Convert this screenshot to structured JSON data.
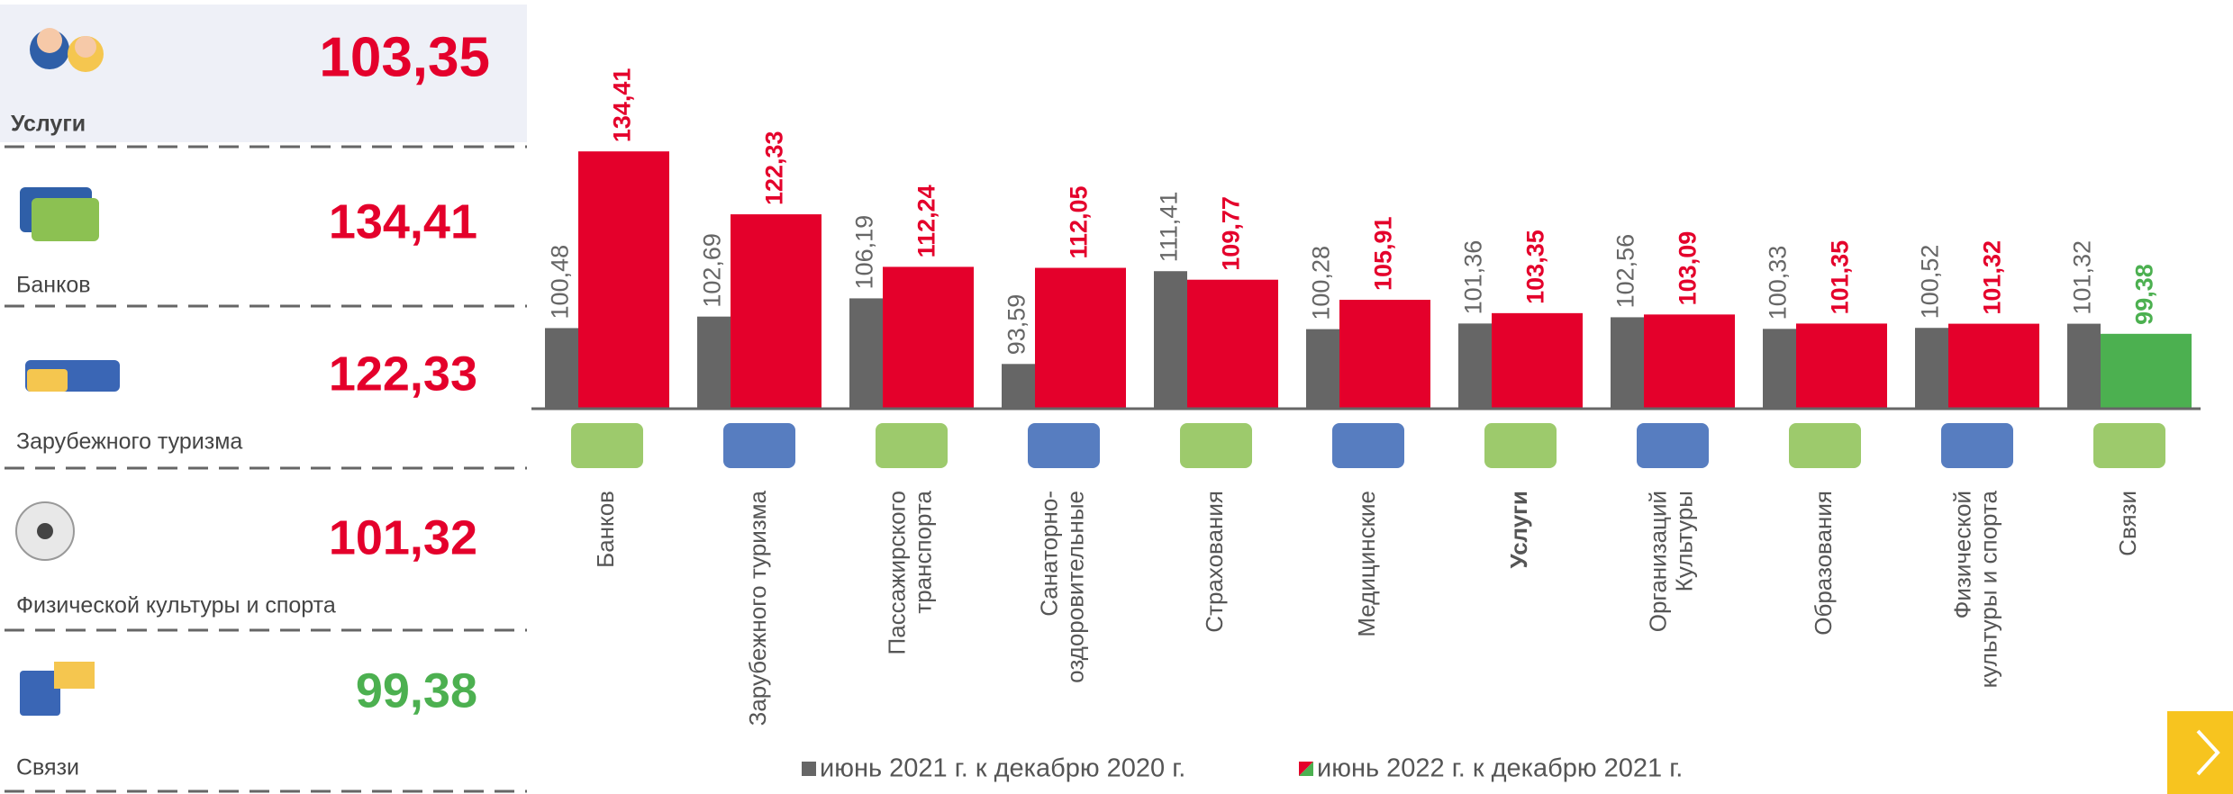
{
  "panel": {
    "labels": [
      "Услуги",
      "Банков",
      "Зарубежного туризма",
      "Физической культуры и спорта",
      "Связи"
    ],
    "values": [
      103.35,
      134.41,
      122.33,
      101.32,
      99.38
    ],
    "value_labels": [
      "103,35",
      "134,41",
      "122,33",
      "101,32",
      "99,38"
    ],
    "colors": [
      "#e4002b",
      "#e4002b",
      "#e4002b",
      "#e4002b",
      "#4cb050"
    ]
  },
  "chart_data": {
    "type": "bar",
    "categories": [
      "Банков",
      "Зарубежного туризма",
      "Пассажирского\nтранспорта",
      "Санаторно-\nоздоровительные",
      "Страхования",
      "Медицинские",
      "Услуги",
      "Организаций\nКультуры",
      "Образования",
      "Физической\nкультуры и спорта",
      "Связи"
    ],
    "emphasis_index": 6,
    "series": [
      {
        "name": "июнь 2021 г. к декабрю 2020 г.",
        "color": "#666666",
        "values": [
          100.48,
          102.69,
          106.19,
          93.59,
          111.41,
          100.28,
          101.36,
          102.56,
          100.33,
          100.52,
          101.32
        ],
        "value_labels": [
          "100,48",
          "102,69",
          "106,19",
          "93,59",
          "111,41",
          "100,28",
          "101,36",
          "102,56",
          "100,33",
          "100,52",
          "101,32"
        ]
      },
      {
        "name": "июнь 2022 г. к декабрю 2021 г.",
        "colors": [
          "#e4002b",
          "#e4002b",
          "#e4002b",
          "#e4002b",
          "#e4002b",
          "#e4002b",
          "#e4002b",
          "#e4002b",
          "#e4002b",
          "#e4002b",
          "#4cb050"
        ],
        "values": [
          134.41,
          122.33,
          112.24,
          112.05,
          109.77,
          105.91,
          103.35,
          103.09,
          101.35,
          101.32,
          99.38
        ],
        "value_labels": [
          "134,41",
          "122,33",
          "112,24",
          "112,05",
          "109,77",
          "105,91",
          "103,35",
          "103,09",
          "101,35",
          "101,32",
          "99,38"
        ]
      }
    ],
    "ylim": [
      85,
      150
    ]
  }
}
